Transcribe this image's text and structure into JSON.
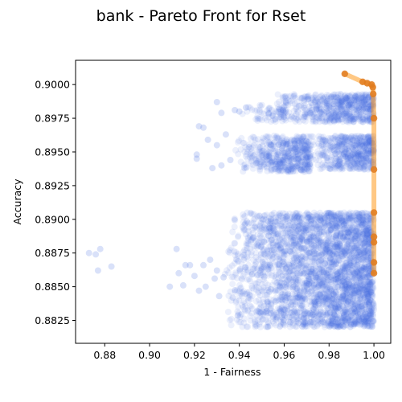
{
  "chart_data": {
    "type": "scatter",
    "title": "bank - Pareto Front for Rset",
    "xlabel": "1 - Fairness",
    "ylabel": "Accuracy",
    "xlim": [
      0.867,
      1.0075
    ],
    "ylim": [
      0.8808,
      0.9018
    ],
    "xticks": [
      {
        "value": 0.88,
        "label": "0.88"
      },
      {
        "value": 0.9,
        "label": "0.90"
      },
      {
        "value": 0.92,
        "label": "0.92"
      },
      {
        "value": 0.94,
        "label": "0.94"
      },
      {
        "value": 0.96,
        "label": "0.96"
      },
      {
        "value": 0.98,
        "label": "0.98"
      },
      {
        "value": 1.0,
        "label": "1.00"
      }
    ],
    "yticks": [
      {
        "value": 0.8825,
        "label": "0.8825"
      },
      {
        "value": 0.885,
        "label": "0.8850"
      },
      {
        "value": 0.8875,
        "label": "0.8875"
      },
      {
        "value": 0.89,
        "label": "0.8900"
      },
      {
        "value": 0.8925,
        "label": "0.8925"
      },
      {
        "value": 0.895,
        "label": "0.8950"
      },
      {
        "value": 0.8975,
        "label": "0.8975"
      },
      {
        "value": 0.9,
        "label": "0.9000"
      }
    ],
    "grid": false,
    "colors": {
      "rset": "#4169e1",
      "pareto": "#ff9a1f",
      "pareto_point": "#e07b1f"
    },
    "series": [
      {
        "values_description_omitted": true,
        "points": [
          [
            0.873,
            0.8875
          ],
          [
            0.876,
            0.8874
          ],
          [
            0.878,
            0.8878
          ],
          [
            0.877,
            0.8862
          ],
          [
            0.883,
            0.8865
          ],
          [
            0.909,
            0.885
          ],
          [
            0.912,
            0.8878
          ],
          [
            0.913,
            0.886
          ],
          [
            0.915,
            0.8851
          ],
          [
            0.916,
            0.8866
          ],
          [
            0.918,
            0.8866
          ],
          [
            0.92,
            0.8858
          ],
          [
            0.922,
            0.8847
          ],
          [
            0.924,
            0.8866
          ],
          [
            0.925,
            0.885
          ],
          [
            0.927,
            0.887
          ],
          [
            0.929,
            0.8856
          ],
          [
            0.93,
            0.8862
          ],
          [
            0.931,
            0.8843
          ],
          [
            0.933,
            0.8857
          ],
          [
            0.921,
            0.8948
          ],
          [
            0.921,
            0.8945
          ],
          [
            0.922,
            0.8969
          ],
          [
            0.924,
            0.8968
          ],
          [
            0.926,
            0.8959
          ],
          [
            0.928,
            0.8938
          ],
          [
            0.93,
            0.8955
          ],
          [
            0.932,
            0.894
          ],
          [
            0.934,
            0.8963
          ],
          [
            0.936,
            0.8944
          ],
          [
            0.93,
            0.8987
          ],
          [
            0.932,
            0.8979
          ],
          [
            0.938,
            0.8981
          ],
          [
            0.94,
            0.898
          ],
          [
            0.943,
            0.8983
          ]
        ]
      }
    ],
    "clusters": [
      {
        "x_min": 0.933,
        "x_max": 1.0,
        "y_min": 0.882,
        "y_max": 0.8905,
        "count": 3200
      },
      {
        "x_min": 0.938,
        "x_max": 0.972,
        "y_min": 0.8935,
        "y_max": 0.8962,
        "count": 520
      },
      {
        "x_min": 0.972,
        "x_max": 1.0,
        "y_min": 0.8937,
        "y_max": 0.8962,
        "count": 520
      },
      {
        "x_min": 0.955,
        "x_max": 1.0,
        "y_min": 0.8972,
        "y_max": 0.8993,
        "count": 620
      },
      {
        "x_min": 0.94,
        "x_max": 0.96,
        "y_min": 0.8972,
        "y_max": 0.8985,
        "count": 60
      }
    ],
    "pareto_front": [
      [
        0.987,
        0.9008
      ],
      [
        0.995,
        0.9002
      ],
      [
        0.997,
        0.9001
      ],
      [
        0.999,
        0.9
      ],
      [
        0.9995,
        0.8998
      ],
      [
        0.9997,
        0.8993
      ],
      [
        1.0,
        0.8975
      ],
      [
        1.0,
        0.8937
      ],
      [
        1.0,
        0.8905
      ],
      [
        1.0,
        0.8887
      ],
      [
        1.0,
        0.8883
      ],
      [
        1.0,
        0.8868
      ],
      [
        1.0,
        0.886
      ]
    ]
  }
}
